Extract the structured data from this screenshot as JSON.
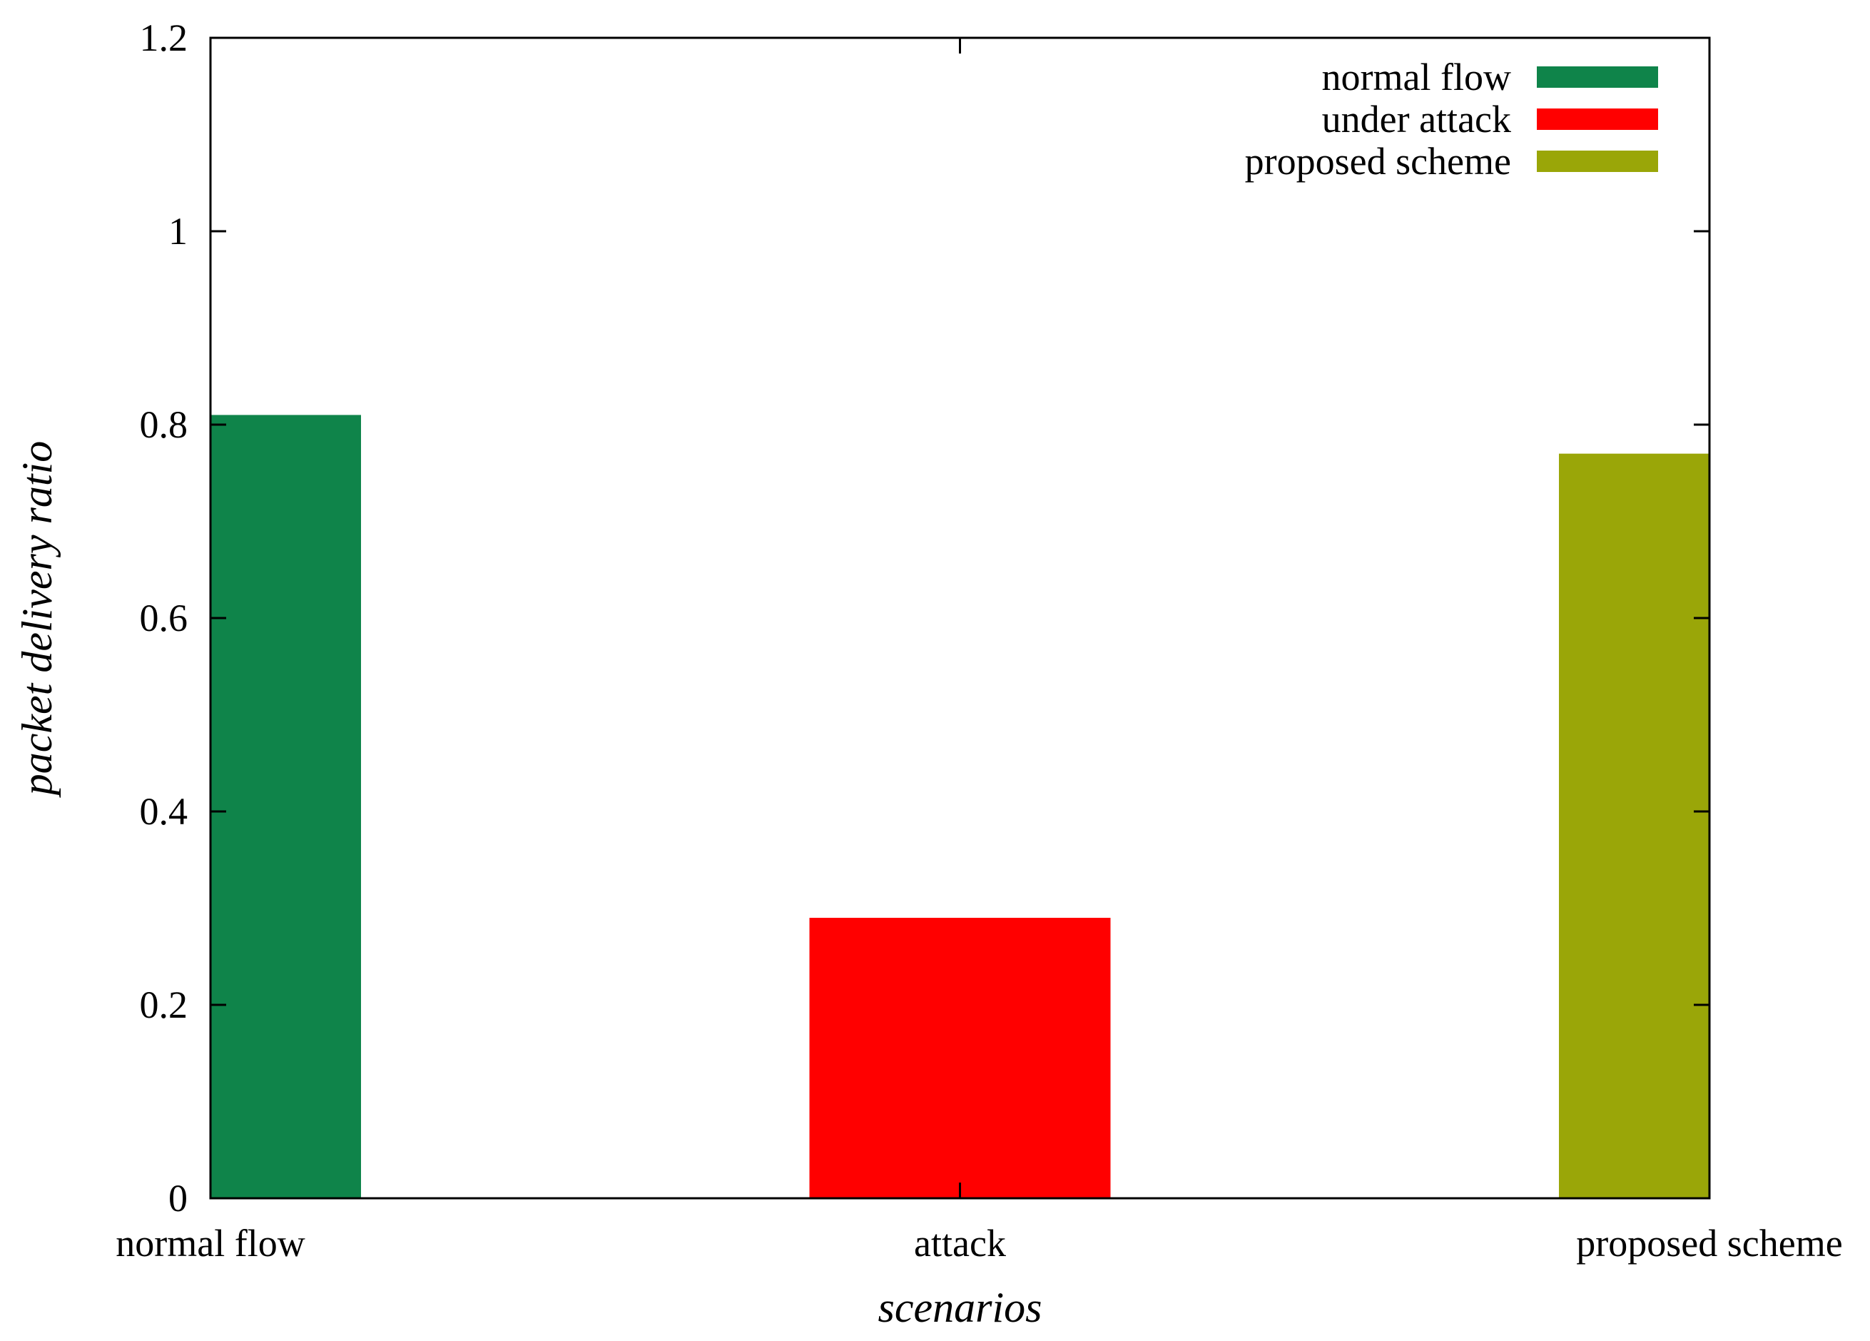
{
  "chart_data": {
    "type": "bar",
    "title": "",
    "xlabel": "scenarios",
    "ylabel": "packet delivery ratio",
    "ylim": [
      0,
      1.2
    ],
    "yticks": [
      0,
      0.2,
      0.4,
      0.6,
      0.8,
      1,
      1.2
    ],
    "ytick_labels": [
      "0",
      "0.2",
      "0.4",
      "0.6",
      "0.8",
      "1",
      "1.2"
    ],
    "categories": [
      "normal flow",
      "attack",
      "proposed scheme"
    ],
    "series": [
      {
        "name": "normal flow",
        "category": "normal flow",
        "value": 0.81,
        "color": "#0f844a"
      },
      {
        "name": "under attack",
        "category": "attack",
        "value": 0.29,
        "color": "#ff0000"
      },
      {
        "name": "proposed scheme",
        "category": "proposed scheme",
        "value": 0.77,
        "color": "#9aa608"
      }
    ],
    "grid": false,
    "legend_position": "top-right"
  }
}
